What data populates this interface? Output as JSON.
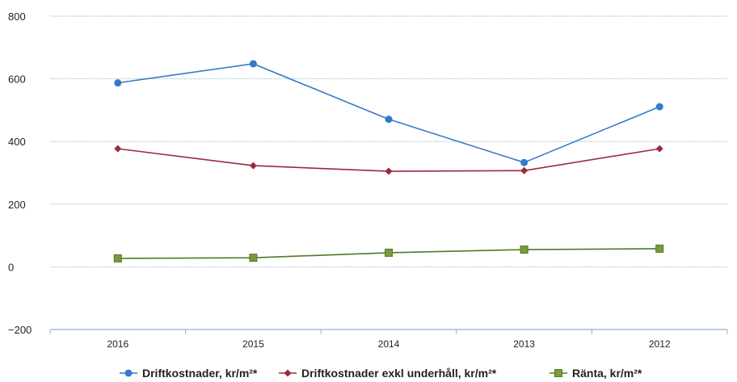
{
  "chart_data": {
    "type": "line",
    "title": "",
    "xlabel": "",
    "ylabel": "",
    "categories": [
      "2016",
      "2015",
      "2014",
      "2013",
      "2012"
    ],
    "ylim": [
      -200,
      800
    ],
    "yticks": [
      800,
      600,
      400,
      200,
      0,
      -200
    ],
    "ytick_labels": [
      "800",
      "600",
      "400",
      "200",
      "0",
      "−200"
    ],
    "grid": true,
    "legend_position": "bottom",
    "series": [
      {
        "name": "Driftkostnader, kr/m²*",
        "marker": "circle",
        "color": "#3579c9",
        "values": [
          587,
          648,
          471,
          333,
          511
        ]
      },
      {
        "name": "Driftkostnader exkl underhåll, kr/m²*",
        "marker": "diamond",
        "color": "#9c2a3c",
        "values": [
          377,
          323,
          305,
          307,
          377
        ]
      },
      {
        "name": "Ränta, kr/m²*",
        "marker": "square",
        "color": "#4f7a26",
        "values": [
          27,
          29,
          45,
          55,
          58
        ]
      }
    ]
  }
}
